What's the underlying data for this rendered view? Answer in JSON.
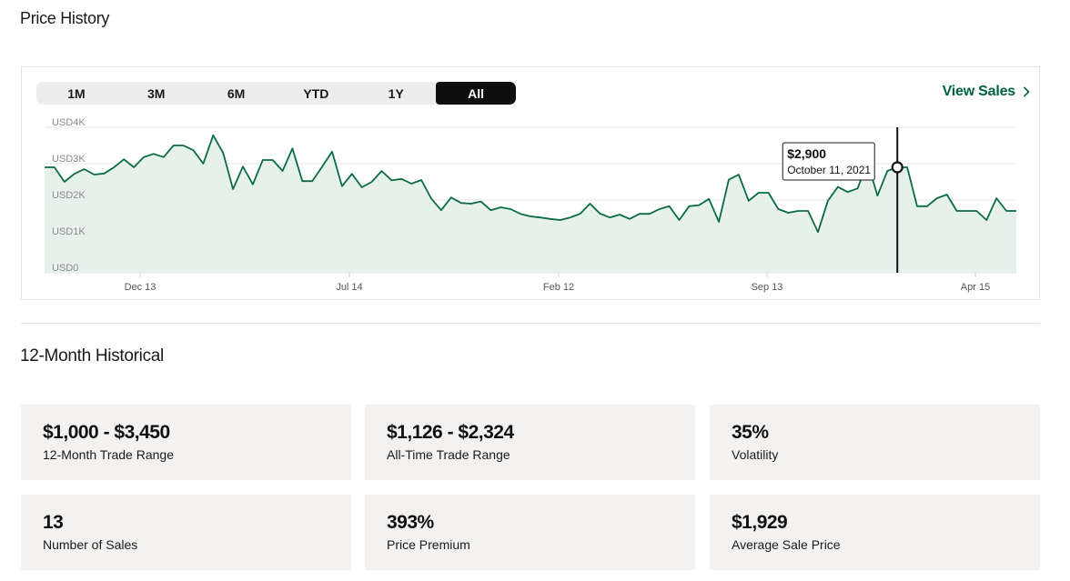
{
  "page": {
    "title": "Price History"
  },
  "range_tabs": [
    "1M",
    "3M",
    "6M",
    "YTD",
    "1Y",
    "All"
  ],
  "active_tab_index": 5,
  "view_sales": {
    "label": "View Sales"
  },
  "tooltip": {
    "price": "$2,900",
    "date": "October 11, 2021"
  },
  "colors": {
    "line": "#0b6b43",
    "fill": "#e6f1ec",
    "accent": "#006340",
    "card_bg": "#f3f2f1"
  },
  "chart_data": {
    "type": "area",
    "title": "",
    "xlabel": "",
    "ylabel": "",
    "ylim": [
      0,
      4000
    ],
    "y_tick_labels": [
      "USD0",
      "USD1K",
      "USD2K",
      "USD3K",
      "USD4K"
    ],
    "x_tick_labels": [
      "Dec 13",
      "Jul 14",
      "Feb 12",
      "Sep 13",
      "Apr 15"
    ],
    "grid": true,
    "highlight_index": 86,
    "series": [
      {
        "values": [
          2900,
          2900,
          2500,
          2720,
          2850,
          2700,
          2730,
          2900,
          3120,
          2900,
          3180,
          3270,
          3180,
          3500,
          3500,
          3370,
          3000,
          3780,
          3300,
          2300,
          2920,
          2430,
          3100,
          3100,
          2800,
          3420,
          2520,
          2520,
          2920,
          3330,
          2380,
          2720,
          2350,
          2500,
          2800,
          2540,
          2580,
          2450,
          2550,
          2040,
          1720,
          2070,
          1920,
          1900,
          1960,
          1720,
          1800,
          1750,
          1620,
          1550,
          1520,
          1480,
          1450,
          1520,
          1620,
          1900,
          1630,
          1520,
          1600,
          1480,
          1620,
          1620,
          1750,
          1830,
          1450,
          1830,
          1860,
          2030,
          1400,
          2560,
          2700,
          1980,
          2200,
          2200,
          1750,
          1650,
          1700,
          1700,
          1120,
          1980,
          2360,
          2220,
          2320,
          3050,
          2120,
          2800,
          2900,
          2900,
          1830,
          1830,
          2050,
          2150,
          1700,
          1700,
          1700,
          1450,
          2050,
          1700,
          1700
        ]
      }
    ]
  },
  "historical": {
    "title": "12-Month Historical",
    "cards": [
      {
        "value": "$1,000 - $3,450",
        "label": "12-Month Trade Range"
      },
      {
        "value": "$1,126 - $2,324",
        "label": "All-Time Trade Range"
      },
      {
        "value": "35%",
        "label": "Volatility"
      },
      {
        "value": "13",
        "label": "Number of Sales"
      },
      {
        "value": "393%",
        "label": "Price Premium"
      },
      {
        "value": "$1,929",
        "label": "Average Sale Price"
      }
    ]
  }
}
